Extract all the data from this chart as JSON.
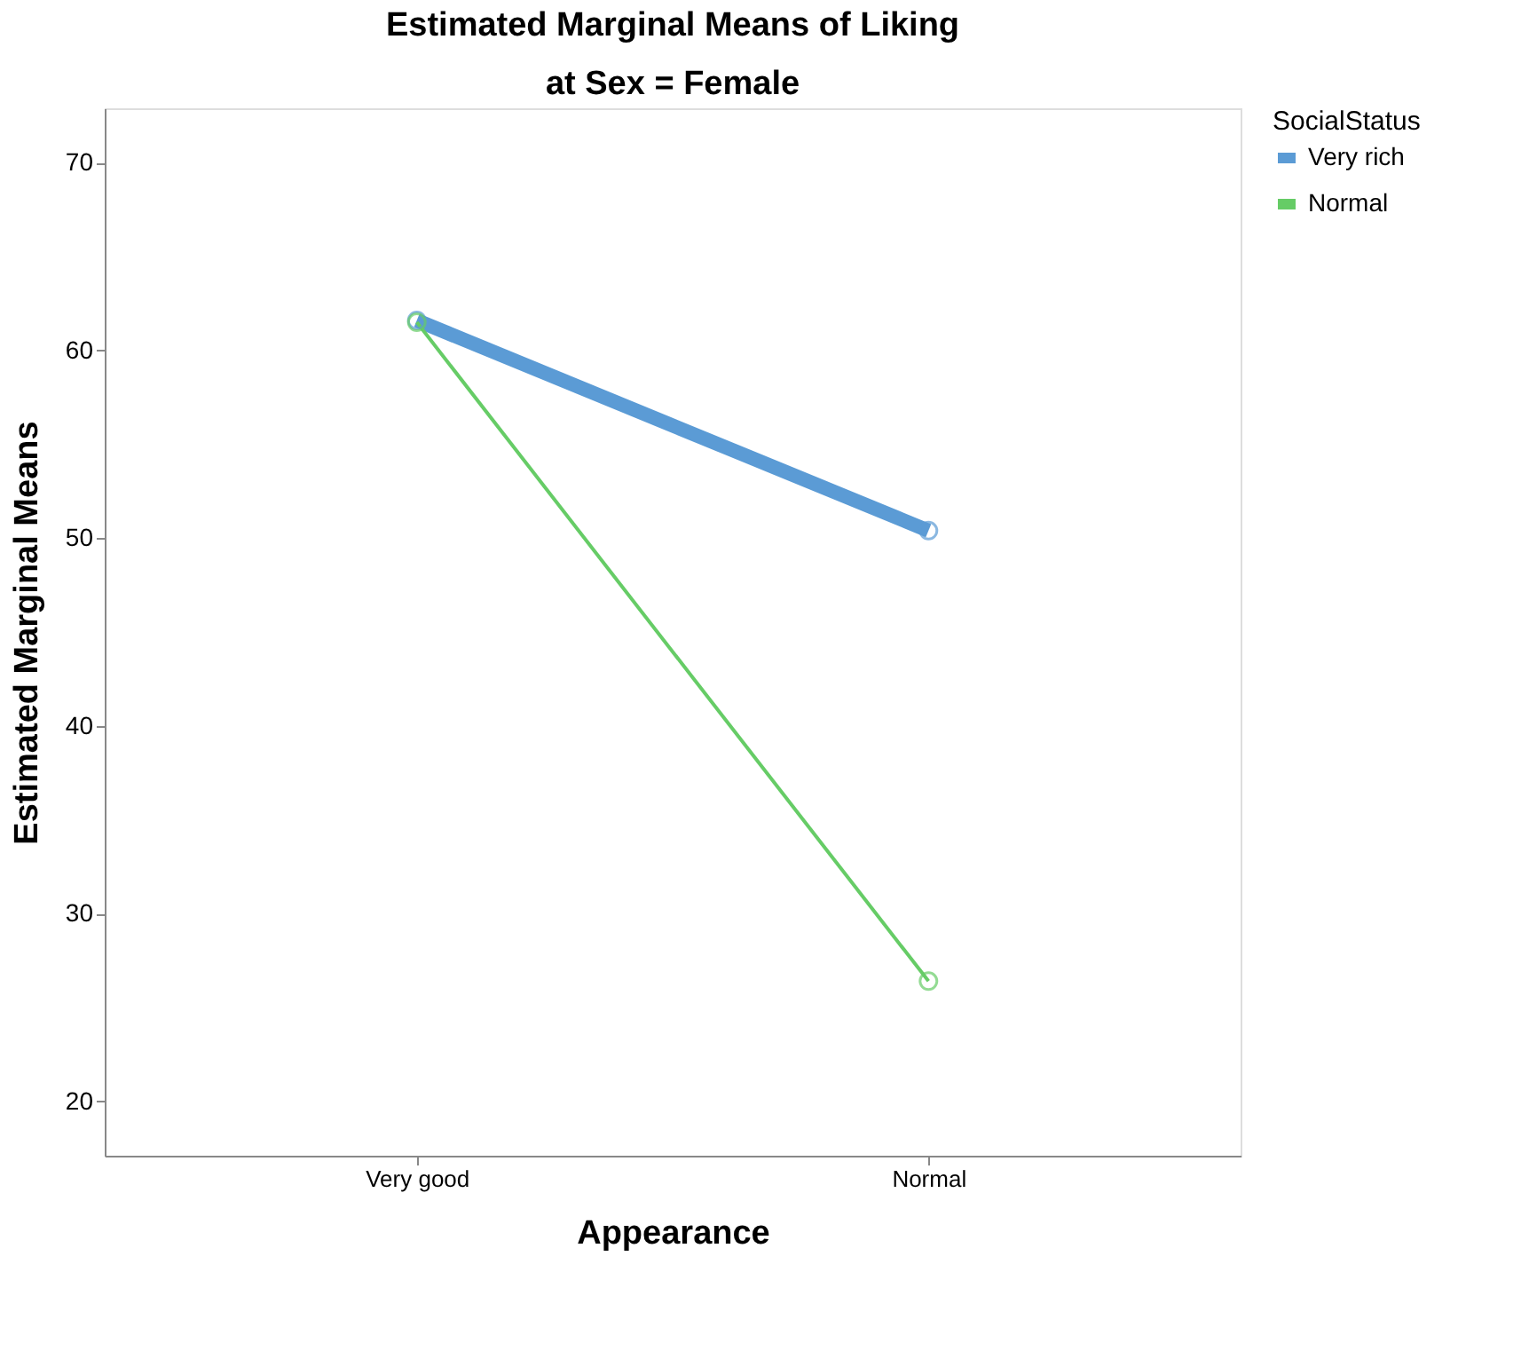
{
  "chart_data": {
    "type": "line",
    "title": "Estimated Marginal Means of Liking",
    "subtitle": "at Sex = Female",
    "xlabel": "Appearance",
    "ylabel": "Estimated Marginal Means",
    "legend_title": "SocialStatus",
    "categories": [
      "Very good",
      "Normal"
    ],
    "series": [
      {
        "name": "Very rich",
        "color": "#5b9bd5",
        "values": [
          61.6,
          50.4
        ]
      },
      {
        "name": "Normal",
        "color": "#66cc66",
        "values": [
          61.5,
          26.4
        ]
      }
    ],
    "ylim": [
      17.1,
      72.9
    ],
    "yticks": [
      20,
      30,
      40,
      50,
      60,
      70
    ],
    "grid": false,
    "legend": "top right",
    "marker": "circle",
    "line_style": "solid"
  }
}
